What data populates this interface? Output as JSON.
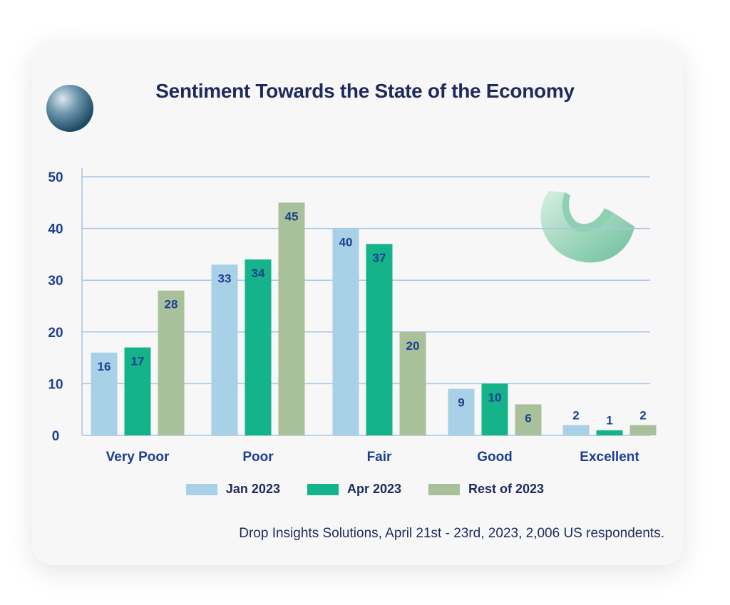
{
  "chart_data": {
    "type": "bar",
    "title": "Sentiment Towards the State of the Economy",
    "categories": [
      "Very Poor",
      "Poor",
      "Fair",
      "Good",
      "Excellent"
    ],
    "series": [
      {
        "name": "Jan 2023",
        "color": "#a8d0e6",
        "values": [
          16,
          33,
          40,
          9,
          2
        ]
      },
      {
        "name": "Apr 2023",
        "color": "#14b38a",
        "values": [
          17,
          34,
          37,
          10,
          1
        ]
      },
      {
        "name": "Rest of 2023",
        "color": "#a8c19a",
        "values": [
          28,
          45,
          20,
          6,
          2
        ]
      }
    ],
    "ylim": [
      0,
      50
    ],
    "yticks": [
      0,
      10,
      20,
      30,
      40,
      50
    ],
    "grid": true,
    "legend": "bottom",
    "source": "Drop Insights Solutions, April 21st - 23rd, 2023, 2,006 US respondents."
  },
  "decorations": {
    "left": "sphere-icon",
    "right": "crescent-shape-icon"
  }
}
